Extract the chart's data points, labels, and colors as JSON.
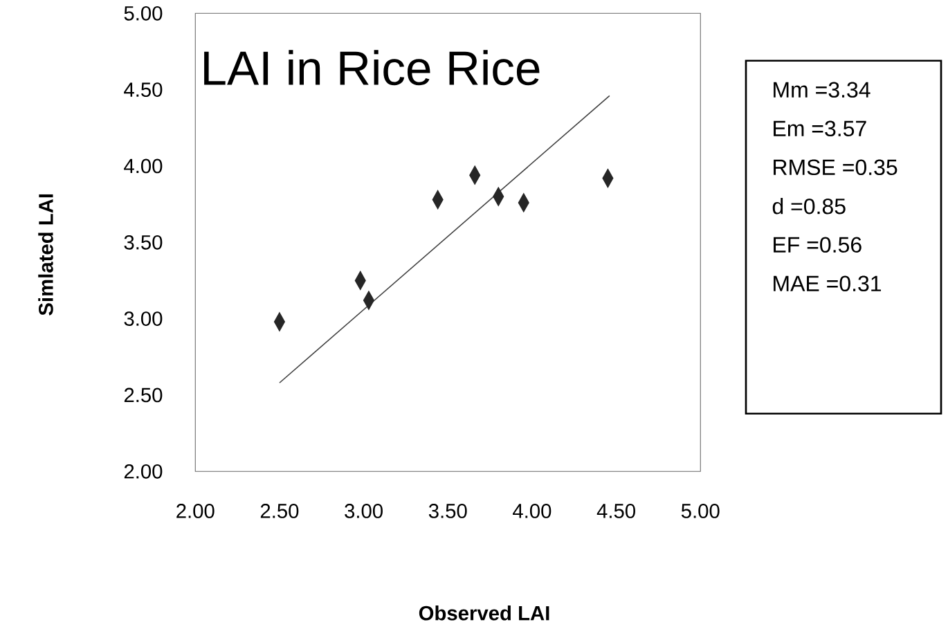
{
  "chart_data": {
    "type": "scatter",
    "title": "LAI in Rice Rice",
    "xlabel": "Observed LAI",
    "ylabel": "Simlated LAI",
    "xlim": [
      2,
      5
    ],
    "ylim": [
      2,
      5
    ],
    "xticks": [
      {
        "value": 2,
        "label": "2.00"
      },
      {
        "value": 2.5,
        "label": "2.50"
      },
      {
        "value": 3,
        "label": "3.00"
      },
      {
        "value": 3.5,
        "label": "3.50"
      },
      {
        "value": 4,
        "label": "4.00"
      },
      {
        "value": 4.5,
        "label": "4.50"
      },
      {
        "value": 5,
        "label": "5.00"
      }
    ],
    "yticks": [
      {
        "value": 2,
        "label": "2.00"
      },
      {
        "value": 2.5,
        "label": "2.50"
      },
      {
        "value": 3,
        "label": "3.00"
      },
      {
        "value": 3.5,
        "label": "3.50"
      },
      {
        "value": 4,
        "label": "4.00"
      },
      {
        "value": 4.5,
        "label": "4.50"
      },
      {
        "value": 5,
        "label": "5.00"
      }
    ],
    "grid": false,
    "legend": false,
    "series": [
      {
        "marker": "diamond",
        "color": "#262626",
        "x": [
          2.5,
          2.98,
          3.03,
          3.44,
          3.66,
          3.8,
          3.95,
          4.45
        ],
        "values": [
          2.98,
          3.25,
          3.12,
          3.78,
          3.94,
          3.8,
          3.76,
          3.92
        ]
      },
      {
        "type": "line",
        "marker": "none",
        "color": "#404040",
        "x": [
          2.5,
          4.46
        ],
        "values": [
          2.58,
          4.46
        ]
      }
    ],
    "annotations": [
      "Mm =3.34",
      "Em =3.57",
      "RMSE =0.35",
      "d =0.85",
      "EF =0.56",
      "MAE =0.31"
    ]
  }
}
